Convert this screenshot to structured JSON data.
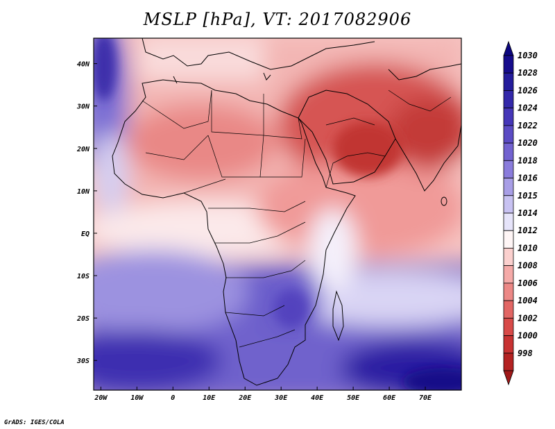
{
  "title": "MSLP [hPa], VT: 2017082906",
  "credit": "GrADS: IGES/COLA",
  "chart_data": {
    "type": "map",
    "variable": "MSLP",
    "units": "hPa",
    "valid_time": "2017082906",
    "lon_range": [
      -22,
      80
    ],
    "lat_range": [
      -37,
      46
    ],
    "x_ticks": [
      "20W",
      "10W",
      "0",
      "10E",
      "20E",
      "30E",
      "40E",
      "50E",
      "60E",
      "70E"
    ],
    "x_tick_values": [
      -20,
      -10,
      0,
      10,
      20,
      30,
      40,
      50,
      60,
      70
    ],
    "y_ticks": [
      "40N",
      "30N",
      "20N",
      "10N",
      "EQ",
      "10S",
      "20S",
      "30S"
    ],
    "y_tick_values": [
      40,
      30,
      20,
      10,
      0,
      -10,
      -20,
      -30
    ],
    "colorbar_levels": [
      "1030",
      "1028",
      "1026",
      "1024",
      "1022",
      "1020",
      "1018",
      "1016",
      "1015",
      "1014",
      "1012",
      "1010",
      "1008",
      "1006",
      "1004",
      "1002",
      "1000",
      "998"
    ],
    "colorbar_colors": [
      "#160c8c",
      "#241c9c",
      "#3328aa",
      "#4536b8",
      "#5b4bc4",
      "#7262d0",
      "#8a7cdc",
      "#a89ee6",
      "#c8c2f2",
      "#e6e4fa",
      "#fff6f6",
      "#fbd0ce",
      "#f5aaa8",
      "#ec8886",
      "#e26664",
      "#d84a48",
      "#c83232",
      "#b42222"
    ],
    "colorbar_top_color": "#0c0680",
    "colorbar_bottom_color": "#a01818"
  },
  "colors": {
    "ocean_south": "#4a3eb8",
    "ocean_southwest": "#5848bc",
    "low_core": "#c33a38"
  }
}
